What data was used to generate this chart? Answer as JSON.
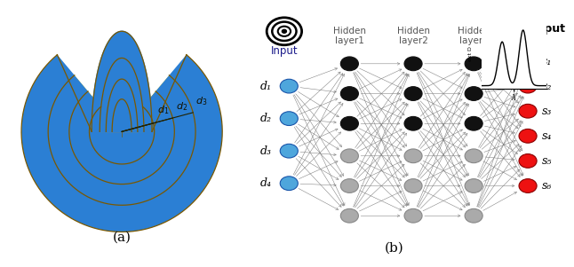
{
  "fig_width": 6.4,
  "fig_height": 2.81,
  "panel_a_label": "(a)",
  "panel_b_label": "(b)",
  "sphere_colors": {
    "outer": "#2B7FD4",
    "layer3": "#FFE000",
    "layer2": "#FFA500",
    "core": "#CC5500"
  },
  "nn_input_labels": [
    "d₁",
    "d₂",
    "d₃",
    "d₄"
  ],
  "nn_output_labels": [
    "s₁",
    "s₂",
    "s₃",
    "s₄",
    "s₅",
    "s₆"
  ],
  "hidden_layer_labels": [
    "Hidden\nlayer1",
    "Hidden\nlayer2",
    "Hidden\nlayer3"
  ],
  "input_color": "#4EA6DC",
  "hidden_black_color": "#111111",
  "hidden_gray_color": "#aaaaaa",
  "output_color": "#EE1111",
  "input_label": "Input",
  "output_label": "Output"
}
